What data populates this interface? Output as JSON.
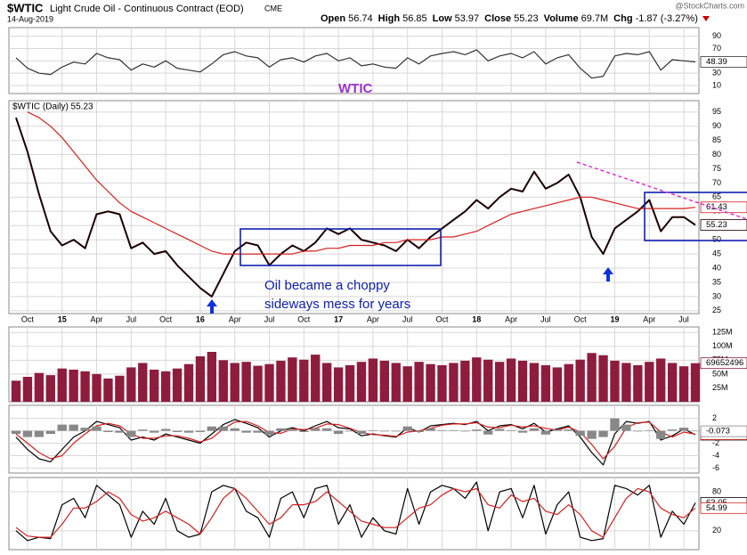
{
  "header": {
    "symbol": "$WTIC",
    "name": "Light Crude Oil - Continuous Contract (EOD)",
    "exchange": "CME",
    "date": "14-Aug-2019",
    "credit": "@StockCharts.com",
    "stats": [
      {
        "label": "Open",
        "value": "56.74"
      },
      {
        "label": "High",
        "value": "56.85"
      },
      {
        "label": "Low",
        "value": "53.97"
      },
      {
        "label": "Close",
        "value": "55.23"
      },
      {
        "label": "Volume",
        "value": "69.7M"
      },
      {
        "label": "Chg",
        "value": "-1.87 (-3.27%)"
      }
    ]
  },
  "chart_data": [
    {
      "type": "line",
      "annotations": [
        "WTIC"
      ],
      "ylim": [
        -3,
        104
      ],
      "yticks": [
        10,
        30,
        50,
        70,
        90
      ],
      "grid": true,
      "series": [
        {
          "name": "RSI",
          "color": "#333333",
          "values": [
            55,
            38,
            30,
            28,
            40,
            48,
            45,
            62,
            55,
            52,
            35,
            45,
            40,
            50,
            38,
            35,
            32,
            45,
            60,
            65,
            58,
            55,
            40,
            52,
            55,
            48,
            58,
            62,
            50,
            55,
            42,
            45,
            40,
            38,
            55,
            45,
            58,
            62,
            65,
            60,
            68,
            50,
            58,
            62,
            55,
            65,
            45,
            55,
            60,
            38,
            22,
            25,
            58,
            62,
            60,
            65,
            35,
            52,
            50,
            48.39
          ]
        }
      ]
    },
    {
      "type": "line",
      "title": "$WTIC (Daily) 55.23",
      "annotations": [
        "Oil became a choppy",
        "sideways mess for years"
      ],
      "ylim": [
        24,
        99
      ],
      "yticks": [
        25,
        30,
        35,
        40,
        45,
        50,
        55,
        60,
        65,
        70,
        75,
        80,
        85,
        90,
        95
      ],
      "grid": true,
      "categories": [
        null,
        "Oct",
        null,
        null,
        "15",
        null,
        null,
        "Apr",
        null,
        null,
        "Jul",
        null,
        null,
        "Oct",
        null,
        null,
        "16",
        null,
        null,
        "Apr",
        null,
        null,
        "Jul",
        null,
        null,
        "Oct",
        null,
        null,
        "17",
        null,
        null,
        "Apr",
        null,
        null,
        "Jul",
        null,
        null,
        "Oct",
        null,
        null,
        "18",
        null,
        null,
        "Apr",
        null,
        null,
        "Jul",
        null,
        null,
        "Oct",
        null,
        null,
        "19",
        null,
        null,
        "Apr",
        null,
        null,
        "Jul",
        null
      ],
      "series": [
        {
          "name": "$WTIC",
          "color": "#1a0000",
          "values": [
            93,
            81,
            66,
            53,
            48,
            50,
            47,
            59,
            60,
            59,
            47,
            49,
            45,
            46,
            41,
            37,
            33,
            30,
            38,
            46,
            49,
            48,
            41,
            45,
            48,
            46,
            49,
            54,
            52,
            54,
            50,
            49,
            48,
            46,
            50,
            47,
            51,
            54,
            57,
            60,
            64,
            61,
            65,
            68,
            67,
            74,
            68,
            70,
            73,
            65,
            51,
            45,
            54,
            57,
            60,
            64,
            53,
            58,
            58,
            55.23
          ]
        },
        {
          "name": "MA(200)",
          "color": "#d42020",
          "values": [
            null,
            95,
            93,
            90,
            86,
            81,
            76,
            71,
            67,
            63,
            60,
            58,
            56,
            54,
            52,
            50,
            48,
            46,
            45,
            45,
            45,
            45,
            45,
            45,
            45,
            46,
            46,
            47,
            47,
            48,
            48,
            48,
            49,
            49,
            50,
            50,
            50,
            51,
            51,
            52,
            53,
            55,
            57,
            59,
            60,
            61,
            62,
            63,
            64,
            65,
            65,
            64,
            63,
            62,
            61,
            61,
            61,
            61,
            61,
            61.43
          ]
        }
      ]
    },
    {
      "type": "bar",
      "ylim": [
        0,
        135000000
      ],
      "grid": true,
      "yticks": [
        {
          "value": 25000000,
          "label": "25M"
        },
        {
          "value": 50000000,
          "label": "50M"
        },
        {
          "value": 75000000,
          "label": "75M"
        },
        {
          "value": 100000000,
          "label": "100M"
        },
        {
          "value": 125000000,
          "label": "125M"
        }
      ],
      "series": [
        {
          "name": "Volume",
          "color": "#8e1c3c",
          "values": [
            38000000,
            45000000,
            52000000,
            48000000,
            60000000,
            58000000,
            55000000,
            50000000,
            42000000,
            47000000,
            62000000,
            70000000,
            58000000,
            55000000,
            60000000,
            68000000,
            82000000,
            90000000,
            75000000,
            70000000,
            72000000,
            65000000,
            68000000,
            74000000,
            80000000,
            76000000,
            85000000,
            70000000,
            62000000,
            66000000,
            72000000,
            78000000,
            74000000,
            70000000,
            64000000,
            72000000,
            68000000,
            66000000,
            70000000,
            74000000,
            80000000,
            76000000,
            72000000,
            78000000,
            74000000,
            70000000,
            66000000,
            62000000,
            68000000,
            76000000,
            88000000,
            84000000,
            74000000,
            70000000,
            66000000,
            72000000,
            78000000,
            70000000,
            64000000,
            69652496
          ]
        }
      ]
    },
    {
      "type": "line",
      "ylim": [
        -6.8,
        4.1
      ],
      "yticks": [
        -6,
        -4,
        -2,
        0,
        2
      ],
      "grid": true,
      "series": [
        {
          "name": "MACD",
          "color": "#000000",
          "values": [
            -1,
            -3,
            -4.5,
            -5,
            -3,
            -1,
            0,
            1.5,
            1,
            0.5,
            -1.5,
            -1,
            -1.5,
            -0.5,
            -1,
            -1.5,
            -2,
            -0.5,
            1,
            1.8,
            1.2,
            0.5,
            -1,
            0,
            0.5,
            0,
            0.8,
            1.5,
            0.5,
            0.3,
            -0.8,
            -0.5,
            -0.8,
            -1,
            0.5,
            -0.2,
            0.8,
            1,
            1.2,
            1,
            1.5,
            0,
            0.8,
            1,
            0.3,
            1.2,
            -0.2,
            0.3,
            0.8,
            -1,
            -3.5,
            -5.5,
            -0.5,
            1.5,
            1.2,
            1.5,
            -1.5,
            -0.8,
            0.3,
            -0.626
          ]
        },
        {
          "name": "Signal",
          "color": "#d42020",
          "values": [
            -0.5,
            -2,
            -3.5,
            -4.5,
            -4,
            -2,
            -0.5,
            0.8,
            1.2,
            0.8,
            -0.5,
            -1.2,
            -1.2,
            -0.8,
            -0.8,
            -1.2,
            -1.8,
            -1.2,
            0.3,
            1.4,
            1.5,
            0.8,
            -0.3,
            -0.4,
            0.3,
            0.2,
            0.4,
            1.1,
            1,
            0.4,
            -0.3,
            -0.6,
            -0.7,
            -0.9,
            -0.2,
            0,
            0.4,
            0.9,
            1.1,
            1.1,
            1.3,
            0.6,
            0.5,
            0.9,
            0.6,
            0.8,
            0.4,
            0.1,
            0.6,
            -0.2,
            -2.2,
            -4.5,
            -2.5,
            0.5,
            1.3,
            1.4,
            -0.2,
            -1,
            -0.2,
            -0.553
          ]
        },
        {
          "name": "Histogram",
          "color": "#888888",
          "kind": "bar",
          "values": [
            -0.5,
            -1,
            -1,
            -0.5,
            1,
            1,
            0.5,
            0.7,
            -0.2,
            -0.3,
            -1,
            0.2,
            -0.3,
            0.3,
            -0.2,
            -0.3,
            -0.2,
            0.7,
            0.7,
            0.4,
            -0.3,
            -0.3,
            -0.7,
            0.4,
            0.2,
            -0.2,
            0.4,
            0.4,
            -0.5,
            -0.1,
            -0.5,
            0.1,
            -0.1,
            -0.1,
            0.7,
            -0.2,
            0.4,
            0.1,
            0.1,
            -0.1,
            0.2,
            -0.6,
            0.3,
            0.1,
            -0.3,
            0.4,
            -0.6,
            0.2,
            0.2,
            -0.8,
            -1.3,
            -1,
            2,
            1,
            -0.1,
            0.1,
            -1.3,
            0.2,
            0.5,
            -0.073
          ]
        }
      ]
    },
    {
      "type": "line",
      "ylim": [
        -9,
        102
      ],
      "yticks": [
        20,
        80
      ],
      "grid": true,
      "series": [
        {
          "name": "%K",
          "color": "#000000",
          "values": [
            20,
            5,
            10,
            8,
            60,
            70,
            40,
            90,
            75,
            60,
            10,
            50,
            30,
            70,
            20,
            10,
            15,
            80,
            90,
            85,
            50,
            40,
            10,
            70,
            80,
            40,
            85,
            90,
            30,
            60,
            10,
            40,
            20,
            15,
            85,
            30,
            80,
            90,
            85,
            70,
            95,
            20,
            80,
            85,
            40,
            90,
            15,
            60,
            80,
            10,
            5,
            8,
            90,
            85,
            75,
            90,
            10,
            50,
            30,
            63.05
          ]
        },
        {
          "name": "%D",
          "color": "#d42020",
          "values": [
            25,
            12,
            10,
            10,
            30,
            55,
            55,
            65,
            80,
            70,
            45,
            35,
            40,
            50,
            40,
            30,
            15,
            40,
            70,
            85,
            70,
            50,
            30,
            40,
            60,
            60,
            65,
            80,
            65,
            50,
            35,
            30,
            25,
            25,
            40,
            55,
            60,
            75,
            85,
            80,
            85,
            60,
            55,
            75,
            65,
            70,
            50,
            45,
            60,
            45,
            20,
            10,
            40,
            70,
            85,
            80,
            55,
            45,
            40,
            54.99
          ]
        }
      ]
    }
  ]
}
